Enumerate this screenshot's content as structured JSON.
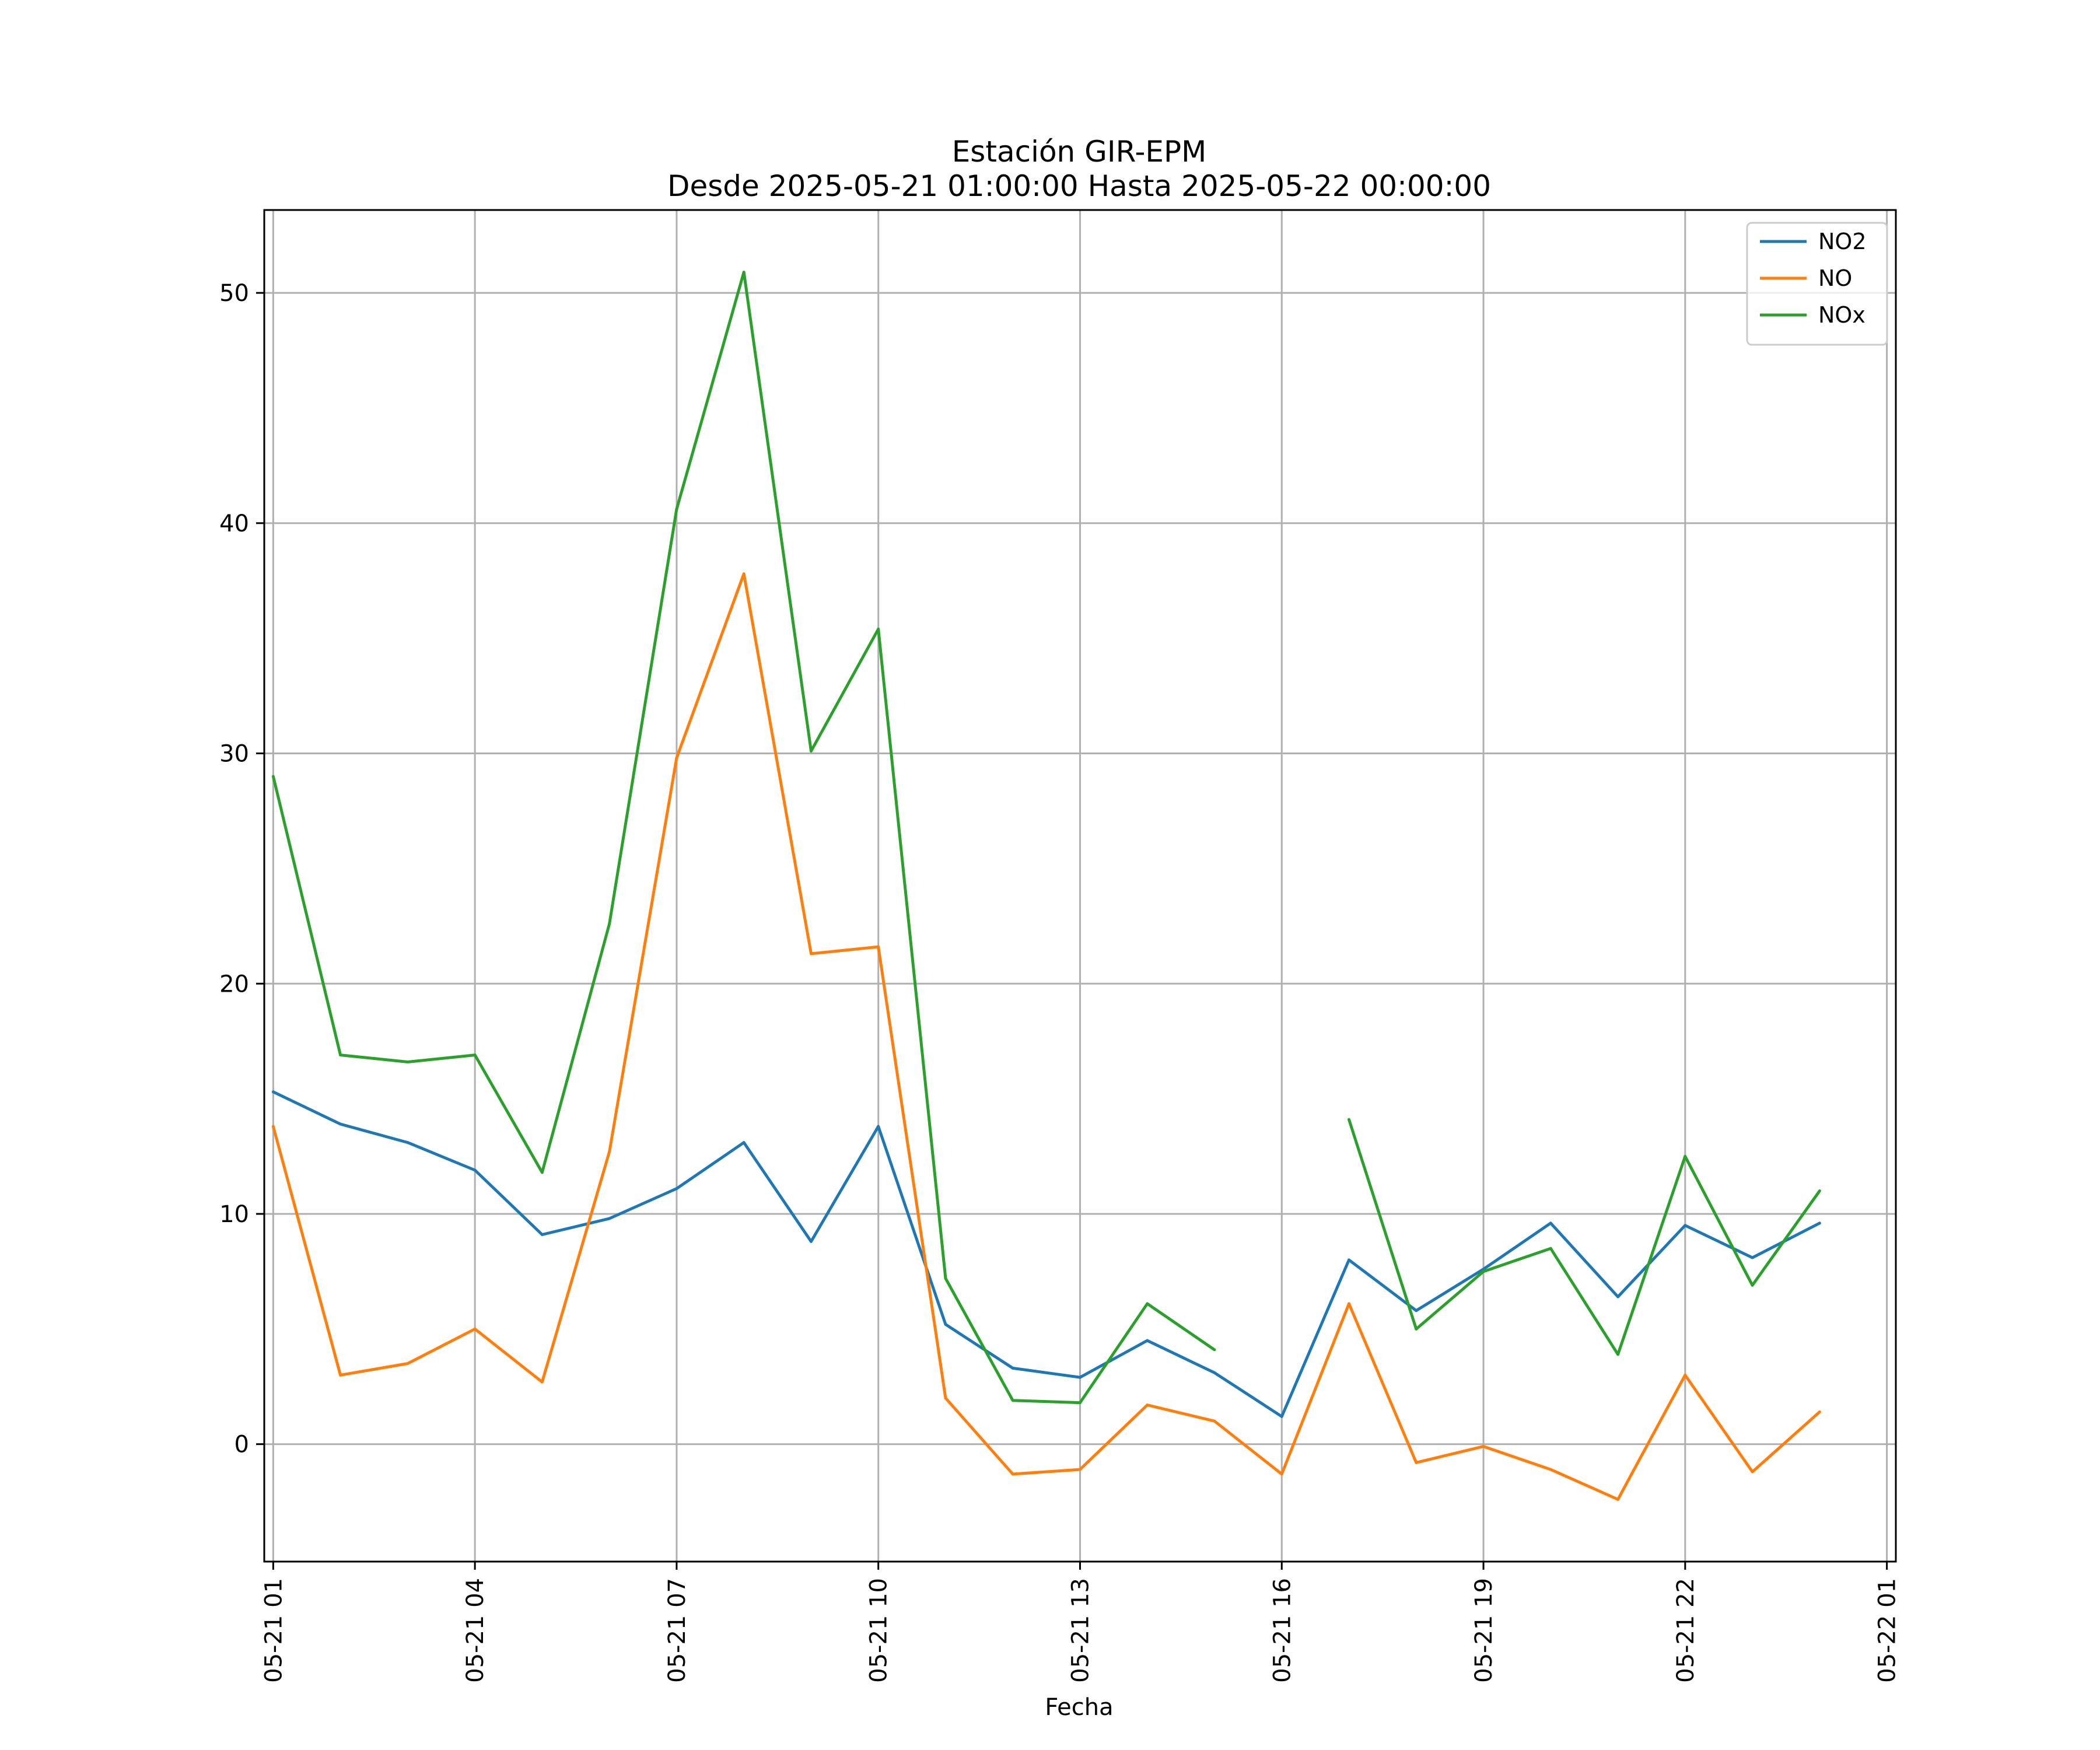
{
  "chart_data": {
    "type": "line",
    "title": "Estación GIR-EPM",
    "subtitle": "Desde 2025-05-21 01:00:00 Hasta 2025-05-22 00:00:00",
    "xlabel": "Fecha",
    "ylabel": "",
    "ylim": [
      -5.1,
      53.6
    ],
    "xlim": [
      "2025-05-21 00:52",
      "2025-05-22 01:08"
    ],
    "grid": true,
    "legend_position": "top-right",
    "x_ticks": [
      {
        "value": "2025-05-21 01:00",
        "label": "05-21 01"
      },
      {
        "value": "2025-05-21 04:00",
        "label": "05-21 04"
      },
      {
        "value": "2025-05-21 07:00",
        "label": "05-21 07"
      },
      {
        "value": "2025-05-21 10:00",
        "label": "05-21 10"
      },
      {
        "value": "2025-05-21 13:00",
        "label": "05-21 13"
      },
      {
        "value": "2025-05-21 16:00",
        "label": "05-21 16"
      },
      {
        "value": "2025-05-21 19:00",
        "label": "05-21 19"
      },
      {
        "value": "2025-05-21 22:00",
        "label": "05-21 22"
      },
      {
        "value": "2025-05-22 01:00",
        "label": "05-22 01"
      }
    ],
    "y_ticks": [
      0,
      10,
      20,
      30,
      40,
      50
    ],
    "x": [
      "2025-05-21 01:00",
      "2025-05-21 02:00",
      "2025-05-21 03:00",
      "2025-05-21 04:00",
      "2025-05-21 05:00",
      "2025-05-21 06:00",
      "2025-05-21 07:00",
      "2025-05-21 08:00",
      "2025-05-21 09:00",
      "2025-05-21 10:00",
      "2025-05-21 11:00",
      "2025-05-21 12:00",
      "2025-05-21 13:00",
      "2025-05-21 14:00",
      "2025-05-21 15:00",
      "2025-05-21 16:00",
      "2025-05-21 17:00",
      "2025-05-21 18:00",
      "2025-05-21 19:00",
      "2025-05-21 20:00",
      "2025-05-21 21:00",
      "2025-05-21 22:00",
      "2025-05-21 23:00",
      "2025-05-22 00:00"
    ],
    "series": [
      {
        "name": "NO2",
        "color": "#1f77b4",
        "values": [
          15.3,
          13.9,
          13.1,
          11.9,
          9.1,
          9.8,
          11.1,
          13.1,
          8.8,
          13.8,
          5.2,
          3.3,
          2.9,
          4.5,
          3.1,
          1.2,
          8.0,
          5.8,
          7.6,
          9.6,
          6.4,
          9.5,
          8.1,
          9.6
        ]
      },
      {
        "name": "NO",
        "color": "#ff7f0e",
        "values": [
          13.8,
          3.0,
          3.5,
          5.0,
          2.7,
          12.7,
          29.8,
          37.8,
          21.3,
          21.6,
          2.0,
          -1.3,
          -1.1,
          1.7,
          1.0,
          -1.3,
          6.1,
          -0.8,
          -0.1,
          -1.1,
          -2.4,
          3.0,
          -1.2,
          1.4
        ]
      },
      {
        "name": "NOx",
        "color": "#2ca02c",
        "values": [
          29.0,
          16.9,
          16.6,
          16.9,
          11.8,
          22.6,
          40.6,
          50.9,
          30.1,
          35.4,
          7.2,
          1.9,
          1.8,
          6.1,
          4.1,
          null,
          14.1,
          5.0,
          7.5,
          8.5,
          3.9,
          12.5,
          6.9,
          11.0
        ]
      }
    ]
  }
}
